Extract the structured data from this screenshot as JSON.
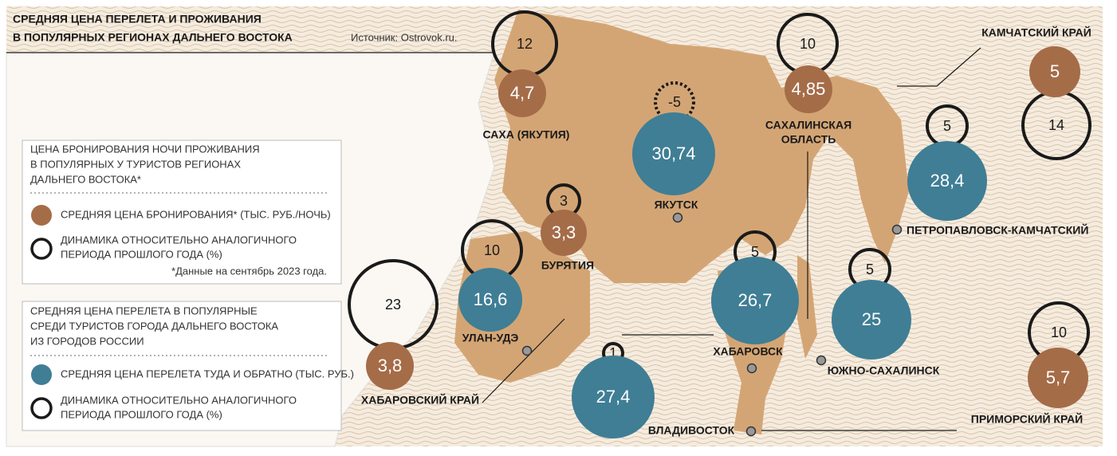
{
  "header": {
    "title_lines": [
      "СРЕДНЯЯ ЦЕНА ПЕРЕЛЕТА И ПРОЖИВАНИЯ",
      "В ПОПУЛЯРНЫХ РЕГИОНАХ ДАЛЬНЕГО ВОСТОКА"
    ],
    "source": "Источник: Ostrovok.ru."
  },
  "legend_stay": {
    "heading_lines": [
      "ЦЕНА БРОНИРОВАНИЯ НОЧИ ПРОЖИВАНИЯ",
      "В ПОПУЛЯРНЫХ У ТУРИСТОВ РЕГИОНАХ",
      "ДАЛЬНЕГО ВОСТОКА*"
    ],
    "price_item": "СРЕДНЯЯ ЦЕНА БРОНИРОВАНИЯ* (ТЫС. РУБ./НОЧЬ)",
    "change_item_lines": [
      "ДИНАМИКА ОТНОСИТЕЛЬНО АНАЛОГИЧНОГО",
      "ПЕРИОДА ПРОШЛОГО ГОДА (%)"
    ],
    "note": "*Данные на сентябрь 2023 года."
  },
  "legend_flight": {
    "heading_lines": [
      "СРЕДНЯЯ ЦЕНА ПЕРЕЛЕТА В ПОПУЛЯРНЫЕ",
      "СРЕДИ ТУРИСТОВ ГОРОДА ДАЛЬНЕГО ВОСТОКА",
      "ИЗ ГОРОДОВ РОССИИ"
    ],
    "price_item": "СРЕДНЯЯ ЦЕНА ПЕРЕЛЕТА ТУДА И ОБРАТНО (ТЫС. РУБ.)",
    "change_item_lines": [
      "ДИНАМИКА ОТНОСИТЕЛЬНО АНАЛОГИЧНОГО",
      "ПЕРИОДА ПРОШЛОГО ГОДА (%)"
    ]
  },
  "regions": [
    {
      "name_lines": [
        "САХА (ЯКУТИЯ)"
      ],
      "price": "4,7",
      "change": "12"
    },
    {
      "name_lines": [
        "САХАЛИНСКАЯ",
        "ОБЛАСТЬ"
      ],
      "price": "4,85",
      "change": "10"
    },
    {
      "name_lines": [
        "КАМЧАТСКИЙ КРАЙ"
      ],
      "price": "5",
      "change": "14"
    },
    {
      "name_lines": [
        "БУРЯТИЯ"
      ],
      "price": "3,3",
      "change": "3"
    },
    {
      "name_lines": [
        "ХАБАРОВСКИЙ КРАЙ"
      ],
      "price": "3,8",
      "change": "23"
    },
    {
      "name_lines": [
        "ПРИМОРСКИЙ КРАЙ"
      ],
      "price": "5,7",
      "change": "10"
    }
  ],
  "cities": [
    {
      "name": "ЯКУТСК",
      "price": "30,74",
      "change": "-5"
    },
    {
      "name": "ПЕТРОПАВЛОВСК-КАМЧАТСКИЙ",
      "price": "28,4",
      "change": "5"
    },
    {
      "name": "УЛАН-УДЭ",
      "price": "16,6",
      "change": "10"
    },
    {
      "name": "ХАБАРОВСК",
      "price": "26,7",
      "change": "5"
    },
    {
      "name": "ЮЖНО-САХАЛИНСК",
      "price": "25",
      "change": "5"
    },
    {
      "name": "ВЛАДИВОСТОК",
      "price": "27,4",
      "change": "1"
    }
  ]
}
